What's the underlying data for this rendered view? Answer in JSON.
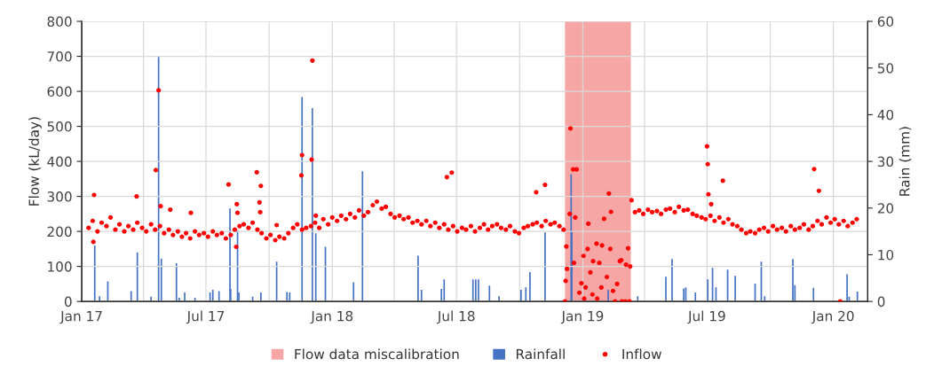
{
  "chart_data": {
    "type": "scatter",
    "ylabel": "Flow (kL/day)",
    "y2label": "Rain (mm)",
    "xlim": [
      "2017-01-01",
      "2020-02-20"
    ],
    "xticks": [
      {
        "value": "2017-01-01",
        "label": "Jan 17"
      },
      {
        "value": "2017-04-01",
        "label": null
      },
      {
        "value": "2017-07-01",
        "label": "Jul 17"
      },
      {
        "value": "2017-10-01",
        "label": null
      },
      {
        "value": "2018-01-01",
        "label": "Jan 18"
      },
      {
        "value": "2018-04-01",
        "label": null
      },
      {
        "value": "2018-07-01",
        "label": "Jul 18"
      },
      {
        "value": "2018-10-01",
        "label": null
      },
      {
        "value": "2019-01-01",
        "label": "Jan 19"
      },
      {
        "value": "2019-04-01",
        "label": null
      },
      {
        "value": "2019-07-01",
        "label": "Jul 19"
      },
      {
        "value": "2019-10-01",
        "label": null
      },
      {
        "value": "2020-01-01",
        "label": "Jan 20"
      }
    ],
    "ylim": [
      0,
      800
    ],
    "yticks": [
      0,
      100,
      200,
      300,
      400,
      500,
      600,
      700,
      800
    ],
    "y2lim": [
      0,
      60
    ],
    "y2ticks": [
      0,
      10,
      20,
      30,
      40,
      50,
      60
    ],
    "grid": true,
    "legend": "bottom",
    "bands": [
      {
        "axis": "x",
        "from": "2018-12-06",
        "to": "2019-03-12",
        "label": "Flow data miscalibration",
        "color": "#f7a6a6"
      }
    ],
    "series": [
      {
        "name": "Rainfall",
        "type": "bar",
        "axis": "y2",
        "color": "#4472c4",
        "x": [
          "2017-01-20",
          "2017-01-27",
          "2017-02-08",
          "2017-03-14",
          "2017-03-23",
          "2017-04-12",
          "2017-04-23",
          "2017-04-27",
          "2017-05-19",
          "2017-05-23",
          "2017-05-31",
          "2017-06-15",
          "2017-07-07",
          "2017-07-11",
          "2017-07-20",
          "2017-08-05",
          "2017-08-06",
          "2017-08-16",
          "2017-08-18",
          "2017-09-07",
          "2017-09-19",
          "2017-10-12",
          "2017-10-27",
          "2017-10-31",
          "2017-11-18",
          "2017-12-03",
          "2017-12-08",
          "2017-12-22",
          "2018-02-01",
          "2018-02-14",
          "2018-05-06",
          "2018-05-11",
          "2018-06-09",
          "2018-06-13",
          "2018-07-25",
          "2018-07-29",
          "2018-08-02",
          "2018-08-18",
          "2018-09-01",
          "2018-10-03",
          "2018-10-10",
          "2018-10-16",
          "2018-11-07",
          "2018-12-15",
          "2018-12-16",
          "2019-02-07",
          "2019-03-22",
          "2019-05-02",
          "2019-05-11",
          "2019-05-28",
          "2019-05-31",
          "2019-06-14",
          "2019-07-02",
          "2019-07-09",
          "2019-07-14",
          "2019-07-31",
          "2019-08-11",
          "2019-09-09",
          "2019-09-18",
          "2019-09-23",
          "2019-11-03",
          "2019-11-06",
          "2019-12-03",
          "2020-01-21",
          "2020-01-24",
          "2020-02-05"
        ],
        "values": [
          12.0,
          1.1,
          4.3,
          2.2,
          10.5,
          1.0,
          52.4,
          9.2,
          8.2,
          0.8,
          1.9,
          0.8,
          1.9,
          2.5,
          2.2,
          19.9,
          2.7,
          15.2,
          1.9,
          1.0,
          1.9,
          8.5,
          2.0,
          1.9,
          43.8,
          41.4,
          14.6,
          11.7,
          4.1,
          27.9,
          9.8,
          2.5,
          2.7,
          4.7,
          4.7,
          4.7,
          4.7,
          3.4,
          1.1,
          2.5,
          3.0,
          6.3,
          14.8,
          27.2,
          15.0,
          2.5,
          1.1,
          5.3,
          9.1,
          2.8,
          3.0,
          1.9,
          4.7,
          7.2,
          3.0,
          6.8,
          5.5,
          3.8,
          8.5,
          1.1,
          9.1,
          3.5,
          2.9,
          5.8,
          1.0,
          2.1
        ]
      },
      {
        "name": "Inflow",
        "color": "#ff0000",
        "marker": "circle",
        "x": [
          "2017-01-11",
          "2017-01-17",
          "2017-01-24",
          "2017-01-30",
          "2017-02-06",
          "2017-02-12",
          "2017-02-19",
          "2017-02-25",
          "2017-03-04",
          "2017-03-10",
          "2017-03-17",
          "2017-03-23",
          "2017-03-30",
          "2017-04-05",
          "2017-04-12",
          "2017-04-18",
          "2017-04-25",
          "2017-05-01",
          "2017-05-08",
          "2017-05-14",
          "2017-05-21",
          "2017-05-27",
          "2017-06-02",
          "2017-06-08",
          "2017-06-15",
          "2017-06-21",
          "2017-06-28",
          "2017-07-04",
          "2017-07-11",
          "2017-07-17",
          "2017-07-24",
          "2017-07-30",
          "2017-08-06",
          "2017-08-12",
          "2017-08-19",
          "2017-08-25",
          "2017-09-01",
          "2017-09-07",
          "2017-09-14",
          "2017-09-20",
          "2017-09-27",
          "2017-10-03",
          "2017-10-10",
          "2017-10-16",
          "2017-10-23",
          "2017-10-29",
          "2017-11-05",
          "2017-11-11",
          "2017-11-18",
          "2017-11-24",
          "2017-12-01",
          "2017-12-07",
          "2017-12-13",
          "2017-12-19",
          "2017-12-26",
          "2018-01-01",
          "2018-01-08",
          "2018-01-14",
          "2018-01-21",
          "2018-01-27",
          "2018-02-03",
          "2018-02-09",
          "2018-02-16",
          "2018-02-22",
          "2018-03-01",
          "2018-03-07",
          "2018-03-14",
          "2018-03-20",
          "2018-03-27",
          "2018-04-02",
          "2018-04-09",
          "2018-04-15",
          "2018-04-22",
          "2018-04-28",
          "2018-05-05",
          "2018-05-11",
          "2018-05-18",
          "2018-05-24",
          "2018-05-31",
          "2018-06-06",
          "2018-06-13",
          "2018-06-19",
          "2018-06-26",
          "2018-07-02",
          "2018-07-09",
          "2018-07-15",
          "2018-07-22",
          "2018-07-28",
          "2018-08-04",
          "2018-08-10",
          "2018-08-16",
          "2018-08-22",
          "2018-08-29",
          "2018-09-04",
          "2018-09-11",
          "2018-09-17",
          "2018-09-24",
          "2018-09-30",
          "2018-10-07",
          "2018-10-13",
          "2018-10-20",
          "2018-10-26",
          "2018-11-02",
          "2018-11-08",
          "2018-11-15",
          "2018-11-21",
          "2018-11-28",
          "2018-12-04",
          "2019-03-18",
          "2019-03-24",
          "2019-03-30",
          "2019-04-06",
          "2019-04-12",
          "2019-04-19",
          "2019-04-25",
          "2019-05-02",
          "2019-05-08",
          "2019-05-15",
          "2019-05-21",
          "2019-05-28",
          "2019-06-03",
          "2019-06-10",
          "2019-06-16",
          "2019-06-23",
          "2019-06-29",
          "2019-07-06",
          "2019-07-12",
          "2019-07-19",
          "2019-07-25",
          "2019-08-01",
          "2019-08-07",
          "2019-08-14",
          "2019-08-20",
          "2019-08-27",
          "2019-09-02",
          "2019-09-09",
          "2019-09-15",
          "2019-09-22",
          "2019-09-28",
          "2019-10-05",
          "2019-10-11",
          "2019-10-18",
          "2019-10-24",
          "2019-10-31",
          "2019-11-06",
          "2019-11-13",
          "2019-11-19",
          "2019-11-26",
          "2019-12-02",
          "2019-12-09",
          "2019-12-15",
          "2019-12-22",
          "2019-12-28",
          "2020-01-03",
          "2020-01-09",
          "2020-01-16",
          "2020-01-22",
          "2020-01-29",
          "2020-02-04",
          "2017-01-19",
          "2017-01-18",
          "2017-03-22",
          "2017-04-19",
          "2017-04-23",
          "2017-04-26",
          "2017-05-10",
          "2017-06-09",
          "2017-08-03",
          "2017-08-15",
          "2017-08-16",
          "2017-08-14",
          "2017-09-13",
          "2017-09-19",
          "2017-09-17",
          "2017-09-18",
          "2017-10-12",
          "2017-11-18",
          "2017-11-17",
          "2017-12-03",
          "2017-12-02",
          "2017-12-08",
          "2018-06-17",
          "2018-06-24",
          "2018-10-25",
          "2018-11-07",
          "2018-12-06",
          "2018-12-07",
          "2018-12-08",
          "2018-12-09",
          "2018-12-13",
          "2018-12-14",
          "2018-12-18",
          "2018-12-19",
          "2018-12-21",
          "2018-12-23",
          "2018-12-27",
          "2018-12-30",
          "2019-01-02",
          "2019-01-03",
          "2019-01-05",
          "2019-01-08",
          "2019-01-09",
          "2019-01-12",
          "2019-01-15",
          "2019-01-16",
          "2019-01-21",
          "2019-01-22",
          "2019-01-25",
          "2019-01-28",
          "2019-01-29",
          "2019-02-01",
          "2019-02-05",
          "2019-02-08",
          "2019-02-10",
          "2019-02-11",
          "2019-02-14",
          "2019-02-17",
          "2019-02-20",
          "2019-02-24",
          "2019-02-26",
          "2019-02-27",
          "2019-03-04",
          "2019-03-05",
          "2019-03-08",
          "2019-03-10",
          "2019-03-11",
          "2019-03-13",
          "2019-07-01",
          "2019-07-02",
          "2019-07-03",
          "2019-07-07",
          "2019-07-24",
          "2019-12-04",
          "2019-12-11",
          "2020-01-11"
        ],
        "values": [
          210,
          230,
          200,
          225,
          215,
          240,
          205,
          220,
          200,
          215,
          205,
          225,
          210,
          200,
          220,
          205,
          215,
          195,
          205,
          190,
          200,
          185,
          195,
          180,
          200,
          190,
          195,
          185,
          200,
          190,
          195,
          180,
          190,
          205,
          215,
          220,
          210,
          225,
          205,
          195,
          180,
          190,
          175,
          185,
          180,
          195,
          210,
          220,
          205,
          210,
          215,
          225,
          210,
          235,
          220,
          240,
          230,
          245,
          235,
          250,
          240,
          260,
          245,
          255,
          275,
          285,
          265,
          270,
          250,
          240,
          245,
          235,
          240,
          225,
          230,
          220,
          230,
          215,
          225,
          210,
          220,
          205,
          215,
          200,
          210,
          205,
          215,
          200,
          210,
          220,
          205,
          215,
          220,
          210,
          205,
          215,
          200,
          195,
          210,
          215,
          220,
          225,
          215,
          230,
          220,
          225,
          215,
          205,
          255,
          260,
          250,
          262,
          255,
          258,
          250,
          262,
          265,
          255,
          270,
          260,
          262,
          250,
          245,
          240,
          235,
          245,
          230,
          240,
          225,
          235,
          220,
          215,
          205,
          195,
          200,
          195,
          205,
          210,
          200,
          215,
          205,
          210,
          200,
          215,
          205,
          210,
          220,
          205,
          215,
          230,
          220,
          240,
          225,
          235,
          220,
          230,
          215,
          225,
          235,
          304,
          170,
          300,
          375,
          603,
          272,
          262,
          253,
          334,
          278,
          253,
          156,
          369,
          330,
          283,
          255,
          218,
          418,
          360,
          688,
          405,
          245,
          355,
          368,
          312,
          333,
          0,
          59,
          157,
          93,
          250,
          494,
          377,
          110,
          240,
          377,
          25,
          52,
          130,
          8,
          40,
          150,
          222,
          83,
          20,
          115,
          165,
          8,
          110,
          40,
          160,
          236,
          70,
          308,
          150,
          256,
          30,
          0,
          50,
          115,
          118,
          0,
          0,
          105,
          152,
          0,
          100,
          289,
          443,
          392,
          306,
          278,
          345,
          378,
          316,
          0
        ]
      }
    ]
  }
}
